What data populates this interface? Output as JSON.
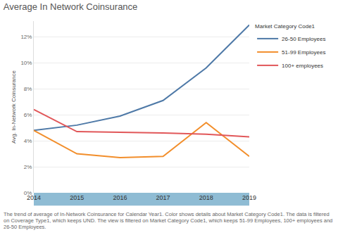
{
  "chart_data": {
    "type": "line",
    "title": "Average In Network Coinsurance",
    "y_label": "Avg. In-Network Coinsurance",
    "legend_title": "Market Category Code1",
    "caption": "The trend of average of In-Network Coinsurance for Calendar Year1. Color shows details about Market Category Code1. The data is filtered on Coverage Type1, which keeps UND. The view is filtered on Market Category Code1, which keeps 51-99 Employees, 100+ employees and 26-50 Employees.",
    "x": [
      2014,
      2015,
      2016,
      2017,
      2018,
      2019
    ],
    "series": [
      {
        "name": "26-50 Employees",
        "color": "#4e79a7",
        "values": [
          4.8,
          5.2,
          5.9,
          7.1,
          9.6,
          12.9
        ]
      },
      {
        "name": "51-99 Employees",
        "color": "#f28e2b",
        "values": [
          4.8,
          3.0,
          2.7,
          2.8,
          5.4,
          2.8
        ]
      },
      {
        "name": "100+ employees",
        "color": "#e15759",
        "values": [
          6.4,
          4.7,
          4.65,
          4.6,
          4.5,
          4.3
        ]
      }
    ],
    "xlim": [
      2014,
      2019
    ],
    "xticks": [
      2014,
      2015,
      2016,
      2017,
      2018,
      2019
    ],
    "ylim": [
      0,
      13.2
    ],
    "yticks": [
      {
        "value": 0,
        "label": "0%"
      },
      {
        "value": 2,
        "label": "2%"
      },
      {
        "value": 4,
        "label": "4%"
      },
      {
        "value": 6,
        "label": "6%"
      },
      {
        "value": 8,
        "label": "8%"
      },
      {
        "value": 10,
        "label": "10%"
      },
      {
        "value": 12,
        "label": "12%"
      }
    ],
    "grid": true,
    "legend": "right"
  }
}
